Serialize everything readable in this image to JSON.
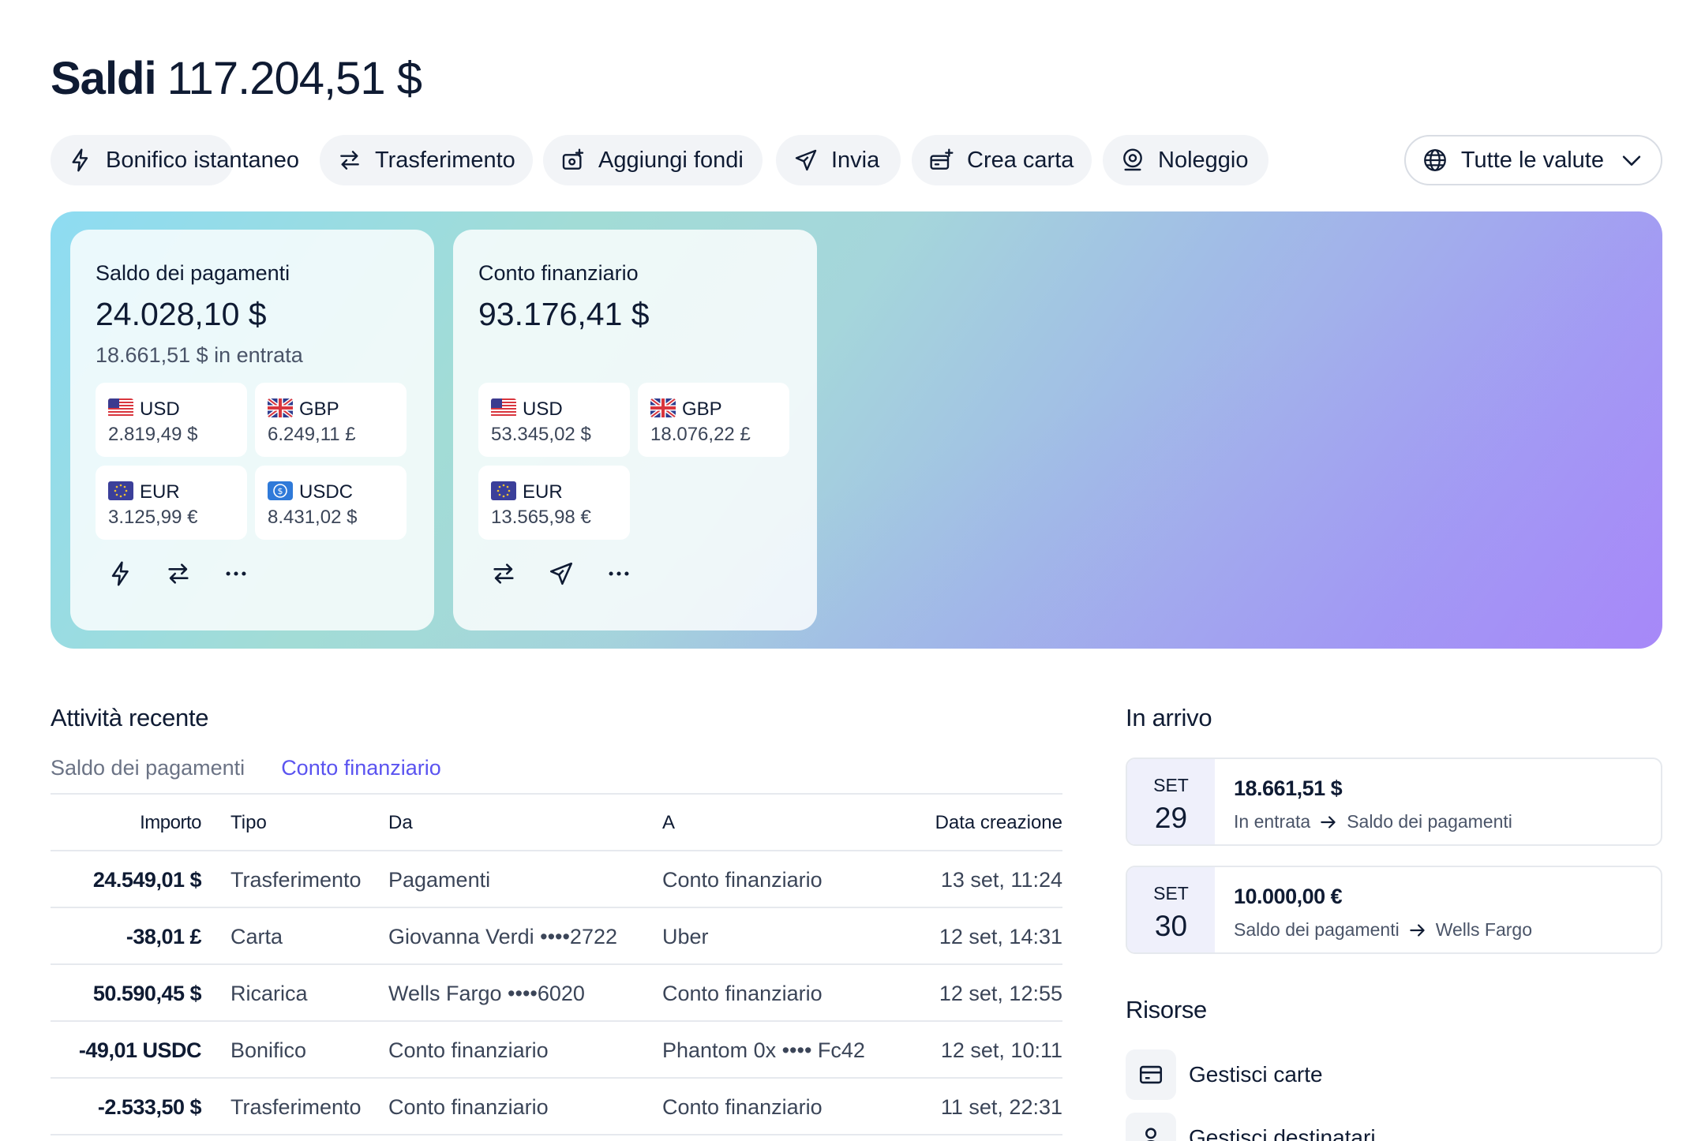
{
  "header": {
    "title": "Saldi",
    "total": "117.204,51 $"
  },
  "actions": [
    {
      "label": "Bonifico istantaneo",
      "icon": "lightning-icon"
    },
    {
      "label": "Trasferimento",
      "icon": "transfer-arrows-icon"
    },
    {
      "label": "Aggiungi fondi",
      "icon": "add-funds-icon"
    },
    {
      "label": "Invia",
      "icon": "send-icon"
    },
    {
      "label": "Crea carta",
      "icon": "create-card-icon"
    },
    {
      "label": "Noleggio",
      "icon": "rental-icon"
    }
  ],
  "currency_filter": {
    "label": "Tutte le valute",
    "icon": "globe-icon"
  },
  "accounts": [
    {
      "title": "Saldo dei pagamenti",
      "balance": "24.028,10 $",
      "incoming": "18.661,51 $ in entrata",
      "currencies": [
        {
          "code": "USD",
          "value": "2.819,49 $",
          "flag": "us-flag-icon"
        },
        {
          "code": "GBP",
          "value": "6.249,11 £",
          "flag": "uk-flag-icon"
        },
        {
          "code": "EUR",
          "value": "3.125,99 €",
          "flag": "eu-flag-icon"
        },
        {
          "code": "USDC",
          "value": "8.431,02 $",
          "flag": "usdc-icon"
        }
      ],
      "card_actions": [
        "lightning-icon",
        "transfer-arrows-icon",
        "more-icon"
      ]
    },
    {
      "title": "Conto finanziario",
      "balance": "93.176,41 $",
      "currencies": [
        {
          "code": "USD",
          "value": "53.345,02 $",
          "flag": "us-flag-icon"
        },
        {
          "code": "GBP",
          "value": "18.076,22 £",
          "flag": "uk-flag-icon"
        },
        {
          "code": "EUR",
          "value": "13.565,98 €",
          "flag": "eu-flag-icon"
        }
      ],
      "card_actions": [
        "transfer-arrows-icon",
        "send-icon",
        "more-icon"
      ]
    }
  ],
  "recent": {
    "title": "Attività recente",
    "tabs": [
      {
        "label": "Saldo dei pagamenti",
        "active": false
      },
      {
        "label": "Conto finanziario",
        "active": true
      }
    ],
    "columns": [
      "Importo",
      "Tipo",
      "Da",
      "A",
      "Data creazione"
    ],
    "rows": [
      [
        "24.549,01 $",
        "Trasferimento",
        "Pagamenti",
        "Conto finanziario",
        "13 set, 11:24"
      ],
      [
        "-38,01 £",
        "Carta",
        "Giovanna Verdi ••••2722",
        "Uber",
        "12 set, 14:31"
      ],
      [
        "50.590,45 $",
        "Ricarica",
        "Wells Fargo ••••6020",
        "Conto finanziario",
        "12 set, 12:55"
      ],
      [
        "-49,01 USDC",
        "Bonifico",
        "Conto finanziario",
        "Phantom 0x •••• Fc42",
        "12 set, 10:11"
      ],
      [
        "-2.533,50 $",
        "Trasferimento",
        "Conto finanziario",
        "Conto finanziario",
        "11 set, 22:31"
      ]
    ]
  },
  "incoming": {
    "title": "In arrivo",
    "items": [
      {
        "month": "SET",
        "day": "29",
        "amount": "18.661,51 $",
        "from": "In entrata",
        "to": "Saldo dei pagamenti"
      },
      {
        "month": "SET",
        "day": "30",
        "amount": "10.000,00 €",
        "from": "Saldo dei pagamenti",
        "to": "Wells Fargo"
      }
    ]
  },
  "resources": {
    "title": "Risorse",
    "items": [
      {
        "label": "Gestisci carte",
        "icon": "card-icon"
      },
      {
        "label": "Gestisci destinatari",
        "icon": "person-icon"
      }
    ]
  },
  "colors": {
    "accent": "#5a53f0",
    "text": "#0f1b33",
    "muted": "#6b7385"
  }
}
